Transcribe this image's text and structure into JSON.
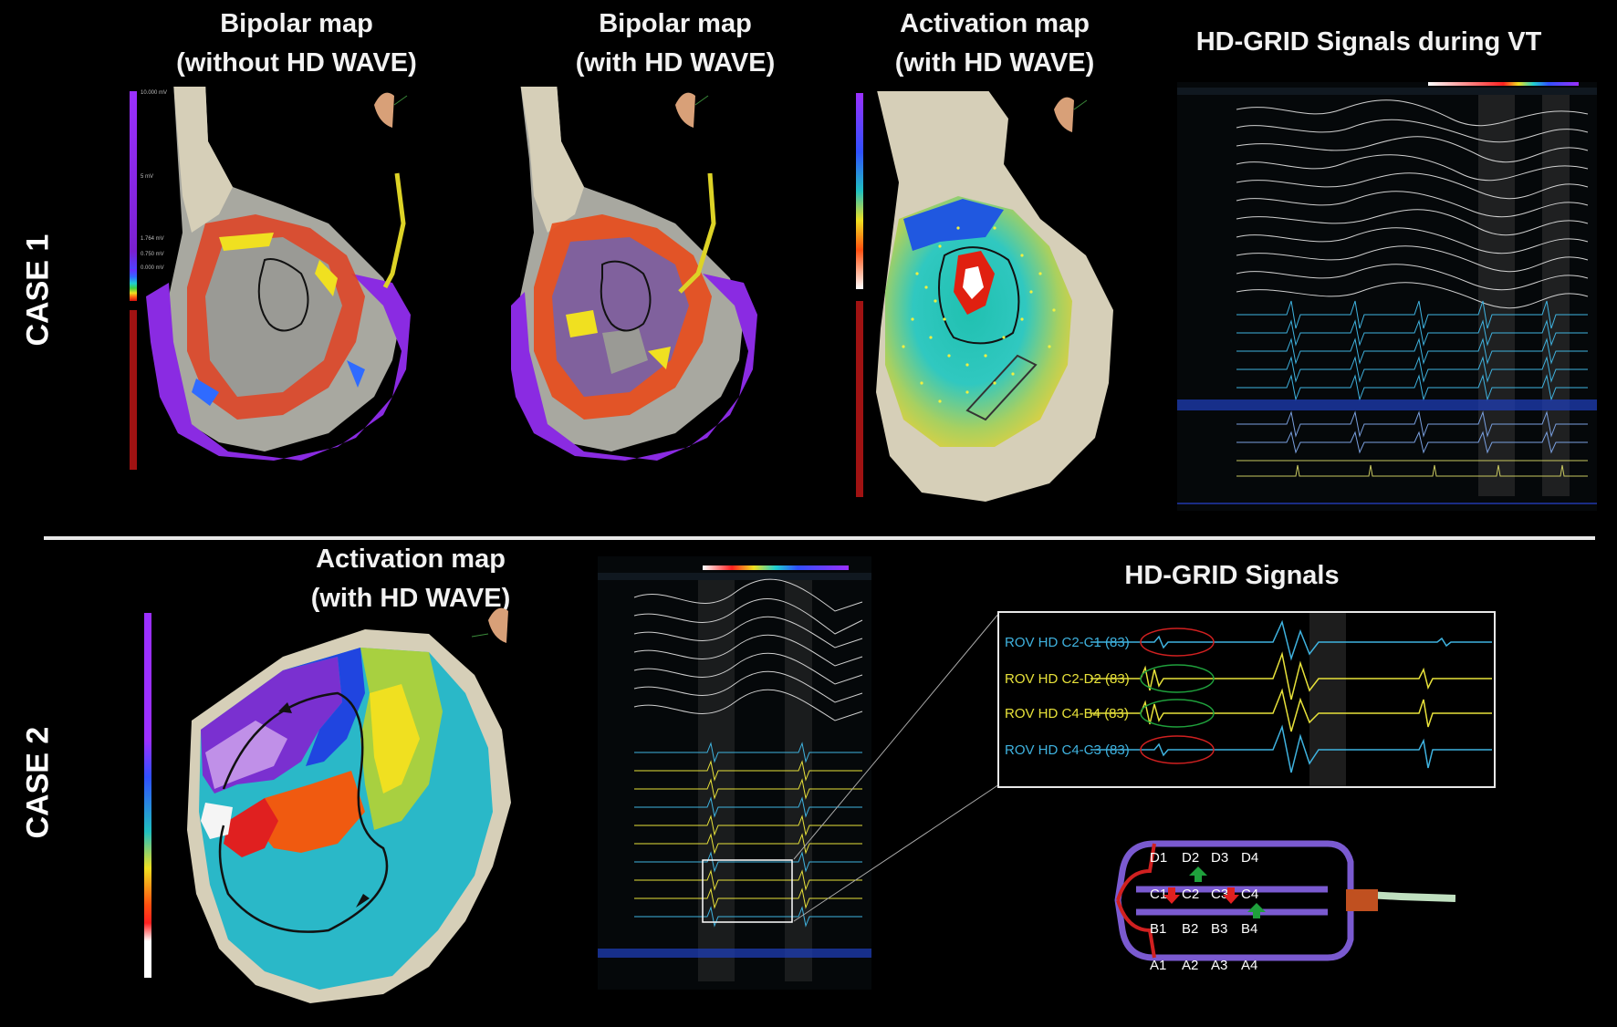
{
  "cases": {
    "case1": "CASE 1",
    "case2": "CASE 2"
  },
  "case1": {
    "panel1_title_l1": "Bipolar map",
    "panel1_title_l2": "(without HD WAVE)",
    "panel2_title_l1": "Bipolar map",
    "panel2_title_l2": "(with HD WAVE)",
    "panel3_title_l1": "Activation map",
    "panel3_title_l2": "(with HD WAVE)",
    "panel4_title": "HD-GRID Signals during VT",
    "scale_labels": [
      "10.000 mV",
      "5 mV",
      "1.764 mV",
      "0.750 mV",
      "0.000 mV"
    ]
  },
  "case2": {
    "panel1_title_l1": "Activation map",
    "panel1_title_l2": "(with HD WAVE)",
    "panel2_title": "HD-GRID Signals",
    "zoom_traces": [
      {
        "label": "ROV HD   C2-C1 (83)",
        "color": "#3fb3e0"
      },
      {
        "label": "ROV HD   C2-D2 (83)",
        "color": "#e8e23a"
      },
      {
        "label": "ROV HD   C4-B4 (83)",
        "color": "#e8e23a"
      },
      {
        "label": "ROV HD   C4-C3 (83)",
        "color": "#3fb3e0"
      }
    ],
    "grid_electrodes": {
      "row_d": [
        "D1",
        "D2",
        "D3",
        "D4"
      ],
      "row_c": [
        "C1",
        "C2",
        "C3",
        "C4"
      ],
      "row_b": [
        "B1",
        "B2",
        "B3",
        "B4"
      ],
      "row_a": [
        "A1",
        "A2",
        "A3",
        "A4"
      ]
    }
  },
  "colors": {
    "background": "#000000",
    "divider": "#e8e8e8",
    "purple": "#8a2be2",
    "scar_red": "#b01010",
    "signal_blue": "#3fb3e0",
    "signal_yellow": "#e8e23a",
    "arrow_green": "#1fa03c",
    "arrow_red": "#e02020"
  },
  "icons": [
    "heart-orientation-icon",
    "catheter-icon",
    "hd-grid-catheter-icon"
  ]
}
